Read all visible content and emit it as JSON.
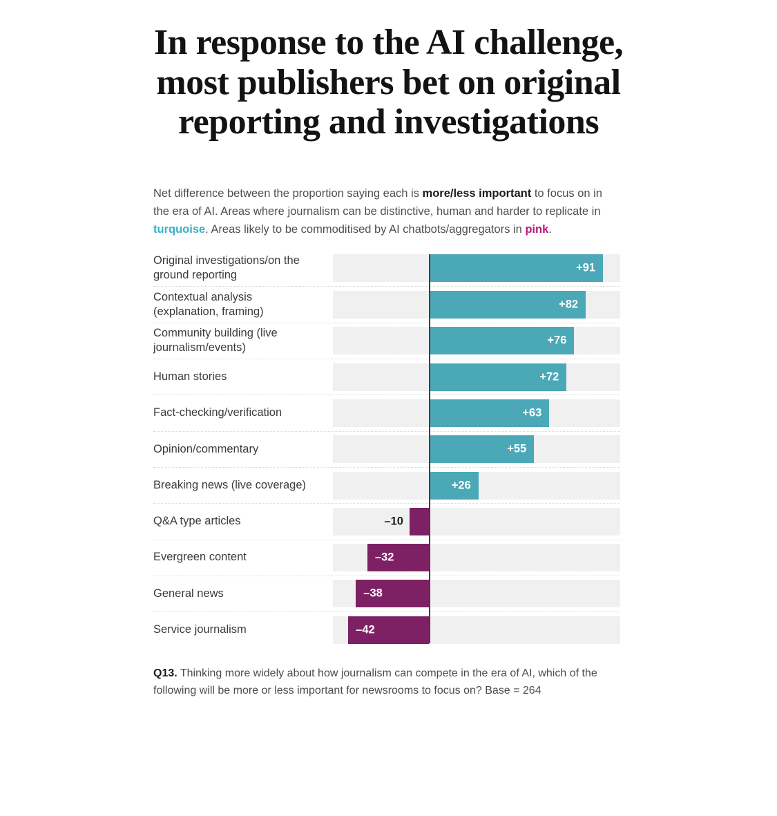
{
  "title": "In response to the AI challenge,\nmost publishers bet on original\nreporting and investigations",
  "subtitle": {
    "segments": [
      {
        "text": "Net difference between the proportion saying each is ",
        "style": "normal"
      },
      {
        "text": "more/less important",
        "style": "bold"
      },
      {
        "text": " to focus on in the era of AI. Areas where journalism can be distinctive, human and harder to replicate in ",
        "style": "normal"
      },
      {
        "text": "turquoise",
        "style": "turquoise"
      },
      {
        "text": ". Areas likely to be commoditised by AI chatbots/aggregators in ",
        "style": "normal"
      },
      {
        "text": "pink",
        "style": "pink"
      },
      {
        "text": ".",
        "style": "normal"
      }
    ]
  },
  "footnote": {
    "segments": [
      {
        "text": "Q13.",
        "style": "bold"
      },
      {
        "text": " Thinking more widely about how journalism can compete in the era of AI, which of the following will be more or less important for newsrooms to focus on? Base = 264",
        "style": "normal"
      }
    ]
  },
  "colors": {
    "positive_bar": "#4BA8B7",
    "negative_bar": "#7D2164",
    "track": "#F0F0F1",
    "zero_line": "#3F3F3F",
    "turquoise_text": "#3CAFC4",
    "pink_text": "#B81778"
  },
  "chart_data": {
    "type": "bar",
    "orientation": "horizontal",
    "title": "In response to the AI challenge, most publishers bet on original reporting and investigations",
    "categories": [
      "Original investigations/on the ground reporting",
      "Contextual analysis (explanation, framing)",
      "Community building (live journalism/events)",
      "Human stories",
      "Fact-checking/verification",
      "Opinion/commentary",
      "Breaking news (live coverage)",
      "Q&A type articles",
      "Evergreen content",
      "General news",
      "Service journalism"
    ],
    "values": [
      91,
      82,
      76,
      72,
      63,
      55,
      26,
      -10,
      -32,
      -38,
      -42
    ],
    "value_labels": [
      "+91",
      "+82",
      "+76",
      "+72",
      "+63",
      "+55",
      "+26",
      "–10",
      "–32",
      "–38",
      "–42"
    ],
    "series": [
      {
        "name": "Distinctive, human, harder to replicate (turquoise)",
        "color": "#4BA8B7",
        "values": [
          91,
          82,
          76,
          72,
          63,
          55,
          26
        ]
      },
      {
        "name": "Likely commoditised by AI chatbots/aggregators (pink)",
        "color": "#7D2164",
        "values": [
          -10,
          -32,
          -38,
          -42
        ]
      }
    ],
    "xlim": [
      -50,
      100
    ],
    "zero_line": true,
    "grid": false,
    "legend": "none",
    "value_axis_hidden": true
  }
}
